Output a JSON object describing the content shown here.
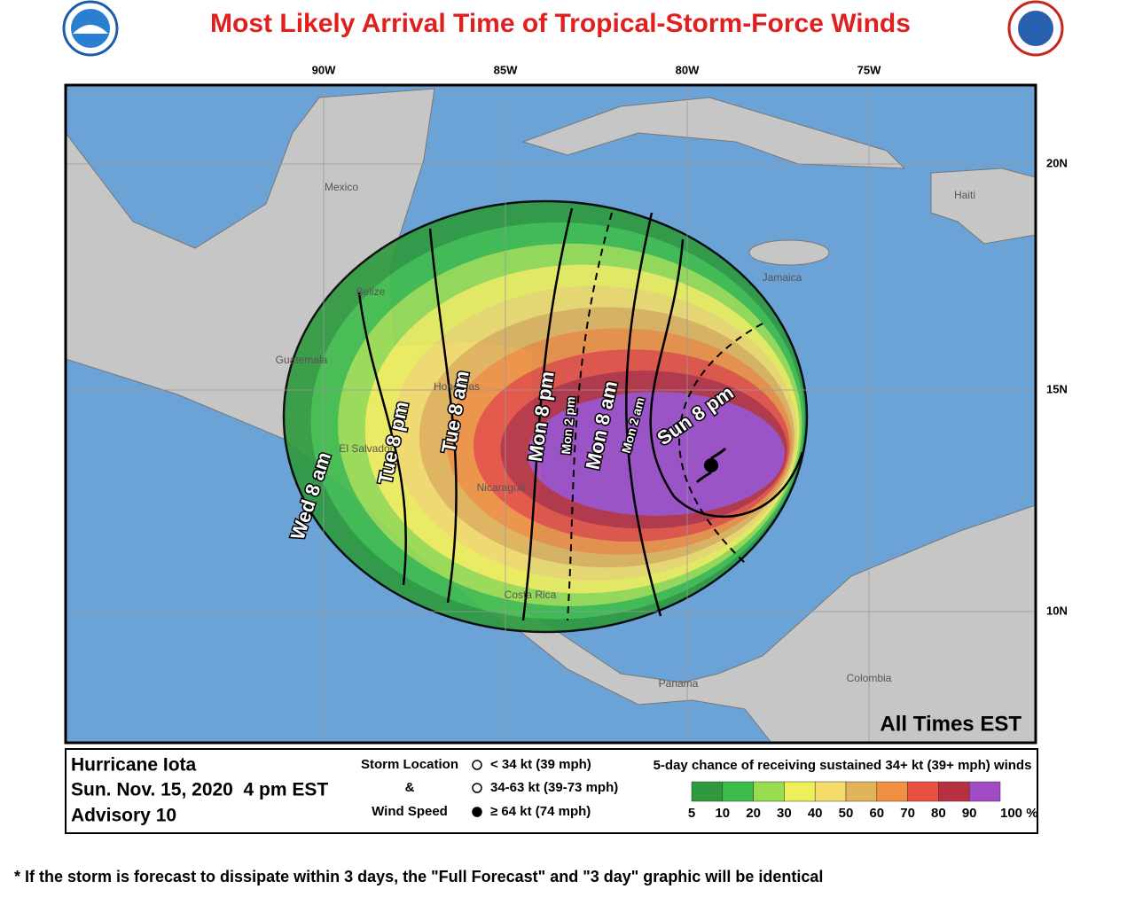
{
  "title": "Most Likely Arrival Time of Tropical-Storm-Force Winds",
  "longitude_labels": [
    "90W",
    "85W",
    "80W",
    "75W"
  ],
  "latitude_labels": [
    "20N",
    "15N",
    "10N"
  ],
  "place_labels": [
    "Mexico",
    "Belize",
    "Guatemala",
    "Honduras",
    "El Salvador",
    "Nicaragua",
    "Costa Rica",
    "Panama",
    "Colombia",
    "Jamaica",
    "Haiti"
  ],
  "time_labels": [
    "Wed 8 am",
    "Tue 8 pm",
    "Tue 8 am",
    "Mon 8 pm",
    "Mon 2 pm",
    "Mon 8 am",
    "Mon 2 am",
    "Sun 8 pm"
  ],
  "time_zone_note": "All Times EST",
  "legend": {
    "storm_name": "Hurricane Iota",
    "date": "Sun. Nov. 15, 2020  4 pm EST",
    "advisory": "Advisory 10",
    "symbol_heading": [
      "Storm Location",
      "&",
      "Wind Speed"
    ],
    "wind_classes": [
      "< 34 kt (39 mph)",
      "34-63 kt (39-73 mph)",
      "≥ 64 kt (74 mph)"
    ],
    "probability_title": "5-day chance of receiving sustained 34+ kt (39+ mph) winds",
    "probability_labels": [
      "5",
      "10",
      "20",
      "30",
      "40",
      "50",
      "60",
      "70",
      "80",
      "90",
      "100 %"
    ],
    "probability_colors": [
      "#2e9a3d",
      "#3ebd4a",
      "#98dd50",
      "#eef05a",
      "#f3dc6a",
      "#e2b45a",
      "#f09040",
      "#e85040",
      "#b83040",
      "#a14cc4"
    ]
  },
  "footnote": "* If the storm is forecast to dissipate within 3 days, the \"Full Forecast\" and \"3 day\" graphic will be identical"
}
